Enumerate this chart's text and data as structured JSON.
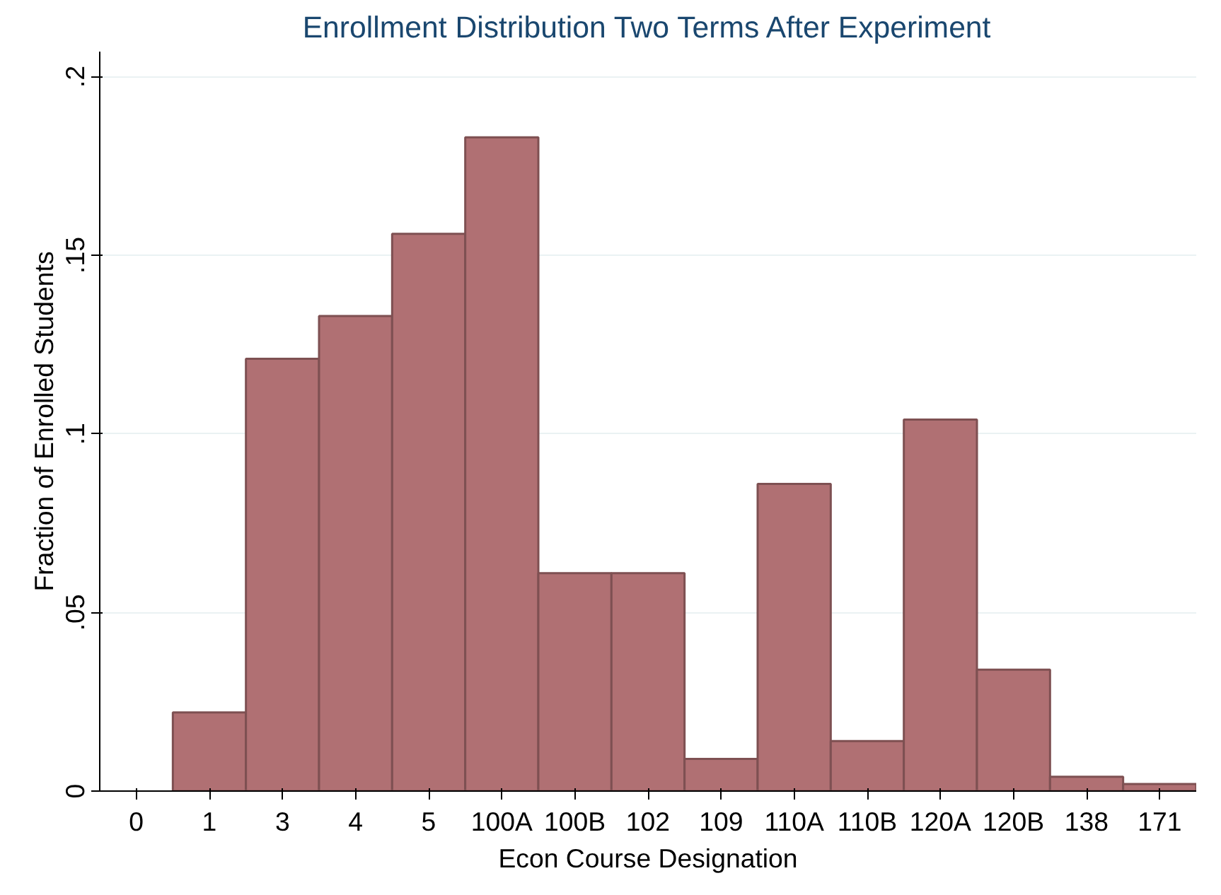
{
  "chart_data": {
    "type": "bar",
    "title": "Enrollment Distribution Two Terms After Experiment",
    "xlabel": "Econ Course Designation",
    "ylabel": "Fraction of Enrolled Students",
    "categories": [
      "0",
      "1",
      "3",
      "4",
      "5",
      "100A",
      "100B",
      "102",
      "109",
      "110A",
      "110B",
      "120A",
      "120B",
      "138",
      "171"
    ],
    "values": [
      null,
      0.022,
      0.121,
      0.133,
      0.156,
      0.183,
      0.061,
      0.061,
      0.009,
      0.086,
      0.014,
      0.104,
      0.034,
      0.004,
      0.002
    ],
    "color": "#b07073",
    "ylim": [
      0,
      0.2
    ],
    "yticks": [
      {
        "value": 0,
        "label": "0"
      },
      {
        "value": 0.05,
        "label": ".05"
      },
      {
        "value": 0.1,
        "label": ".1"
      },
      {
        "value": 0.15,
        "label": ".15"
      },
      {
        "value": 0.2,
        "label": ".2"
      }
    ],
    "grid": "y"
  }
}
